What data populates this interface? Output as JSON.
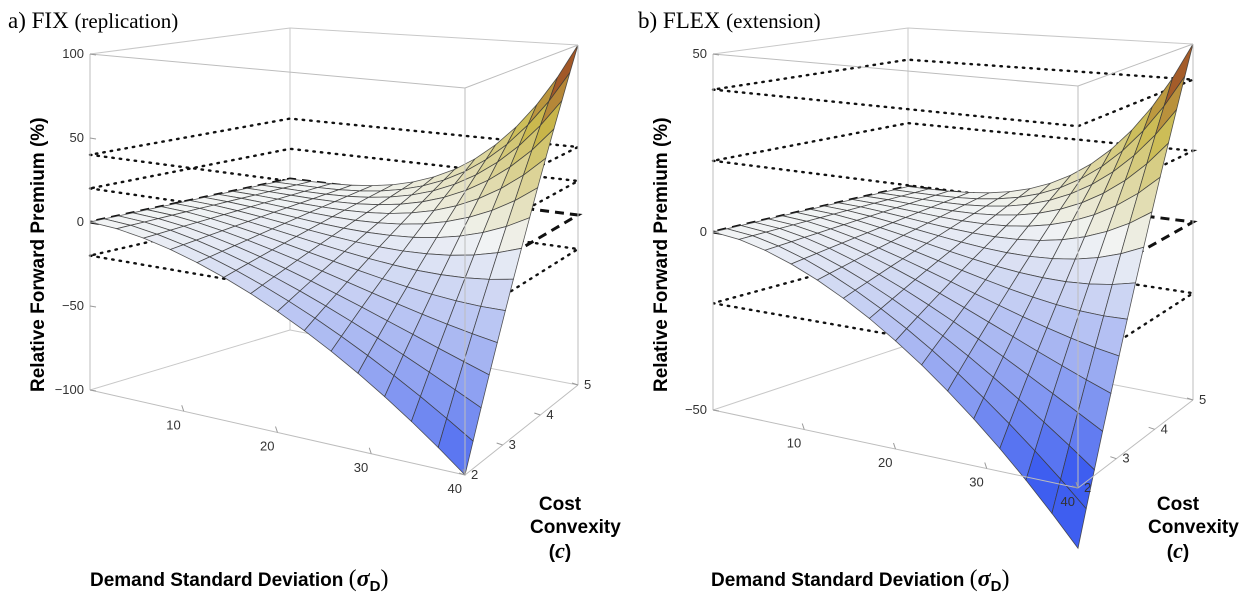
{
  "chart_data": [
    {
      "type": "surface",
      "panel_label": "a)",
      "title": "FIX",
      "subtitle": "(replication)",
      "xlabel": "Demand Standard Deviation",
      "xlabel_symbol": "σ",
      "xlabel_symbol_sub": "D",
      "ylabel": "Cost Convexity",
      "ylabel_symbol": "c",
      "zlabel": "Relative Forward Premium (%)",
      "xlim": [
        0,
        40
      ],
      "ylim": [
        2,
        5
      ],
      "zlim": [
        -100,
        100
      ],
      "x_ticks": [
        "10",
        "20",
        "30",
        "40"
      ],
      "y_ticks": [
        "2",
        "3",
        "4",
        "5"
      ],
      "z_ticks": [
        "100",
        "50",
        "0",
        "−50",
        "−100"
      ],
      "surface_corners": [
        {
          "x": 0,
          "c": 2,
          "z": 0
        },
        {
          "x": 40,
          "c": 2,
          "z": -100
        },
        {
          "x": 40,
          "c": 5,
          "z": 100
        },
        {
          "x": 0,
          "c": 5,
          "z": 0
        }
      ],
      "reference_planes": [
        {
          "z": 0,
          "style": "dashed"
        },
        {
          "z": 20,
          "style": "dotted"
        },
        {
          "z": 40,
          "style": "dotted"
        },
        {
          "z": -20,
          "style": "dotted"
        }
      ],
      "colors": {
        "high": "#8a1c12",
        "mid_high": "#c9b84a",
        "mid": "#f2f4f4",
        "low": "#3e5ef0"
      }
    },
    {
      "type": "surface",
      "panel_label": "b)",
      "title": "FLEX",
      "subtitle": "(extension)",
      "xlabel": "Demand Standard Deviation",
      "xlabel_symbol": "σ",
      "xlabel_symbol_sub": "D",
      "ylabel": "Cost Convexity",
      "ylabel_symbol": "c",
      "zlabel": "Relative Forward Premium (%)",
      "xlim": [
        0,
        40
      ],
      "ylim": [
        2,
        5
      ],
      "zlim": [
        -50,
        50
      ],
      "x_ticks": [
        "10",
        "20",
        "30",
        "40"
      ],
      "y_ticks": [
        "2",
        "3",
        "4",
        "5"
      ],
      "z_ticks": [
        "50",
        "0",
        "−50"
      ],
      "surface_corners": [
        {
          "x": 0,
          "c": 2,
          "z": 0
        },
        {
          "x": 40,
          "c": 2,
          "z": -65
        },
        {
          "x": 40,
          "c": 5,
          "z": 50
        },
        {
          "x": 0,
          "c": 5,
          "z": 0
        }
      ],
      "reference_planes": [
        {
          "z": 0,
          "style": "dashed"
        },
        {
          "z": 20,
          "style": "dotted"
        },
        {
          "z": 40,
          "style": "dotted"
        },
        {
          "z": -20,
          "style": "dotted"
        }
      ],
      "colors": {
        "high": "#8a1c12",
        "mid_high": "#c9b84a",
        "mid": "#f2f4f4",
        "low": "#3e5ef0"
      }
    }
  ]
}
